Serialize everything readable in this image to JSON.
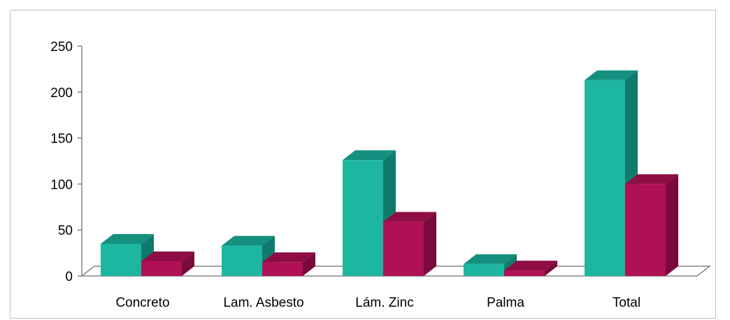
{
  "chart_data": {
    "type": "bar",
    "title": "",
    "xlabel": "",
    "ylabel": "",
    "categories": [
      "Concreto",
      "Lam. Asbesto",
      "Lám. Zinc",
      "Palma",
      "Total"
    ],
    "series": [
      {
        "values": [
          35,
          33,
          126,
          13,
          213
        ]
      },
      {
        "values": [
          16,
          15,
          59,
          6,
          100
        ]
      }
    ],
    "ylim": [
      0,
      250
    ],
    "yticks": [
      0,
      50,
      100,
      150,
      200,
      250
    ],
    "grid": false,
    "legend": "none",
    "colors": {
      "series_front": [
        "#1db6a0",
        "#b01055"
      ],
      "series_side": [
        "#0f7b6c",
        "#7a0a3b"
      ],
      "series_top": [
        "#158f7e",
        "#8f0d45"
      ],
      "axis": "#868686",
      "floor": "#ffffff"
    }
  }
}
